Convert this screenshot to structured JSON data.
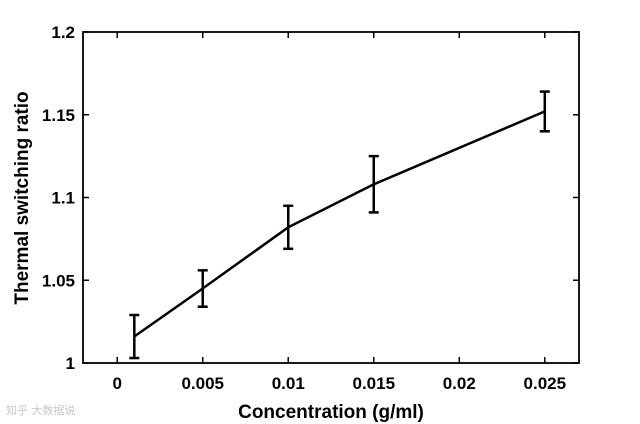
{
  "chart_data": {
    "type": "line",
    "xlabel": "Concentration (g/ml)",
    "ylabel": "Thermal switching ratio",
    "xlim": [
      -0.002,
      0.027
    ],
    "ylim": [
      1,
      1.2
    ],
    "x_ticks": [
      0,
      0.005,
      0.01,
      0.015,
      0.02,
      0.025
    ],
    "x_tick_labels": [
      "0",
      "0.005",
      "0.01",
      "0.015",
      "0.02",
      "0.025"
    ],
    "y_ticks": [
      1,
      1.05,
      1.1,
      1.15,
      1.2
    ],
    "y_tick_labels": [
      "1",
      "1.05",
      "1.1",
      "1.15",
      "1.2"
    ],
    "grid": false,
    "series": [
      {
        "x": [
          0.001,
          0.005,
          0.01,
          0.015,
          0.025
        ],
        "y": [
          1.016,
          1.045,
          1.082,
          1.108,
          1.152
        ],
        "err": [
          0.013,
          0.011,
          0.013,
          0.017,
          0.012
        ],
        "color": "#000000"
      }
    ]
  },
  "watermark": "知乎 大数据说"
}
